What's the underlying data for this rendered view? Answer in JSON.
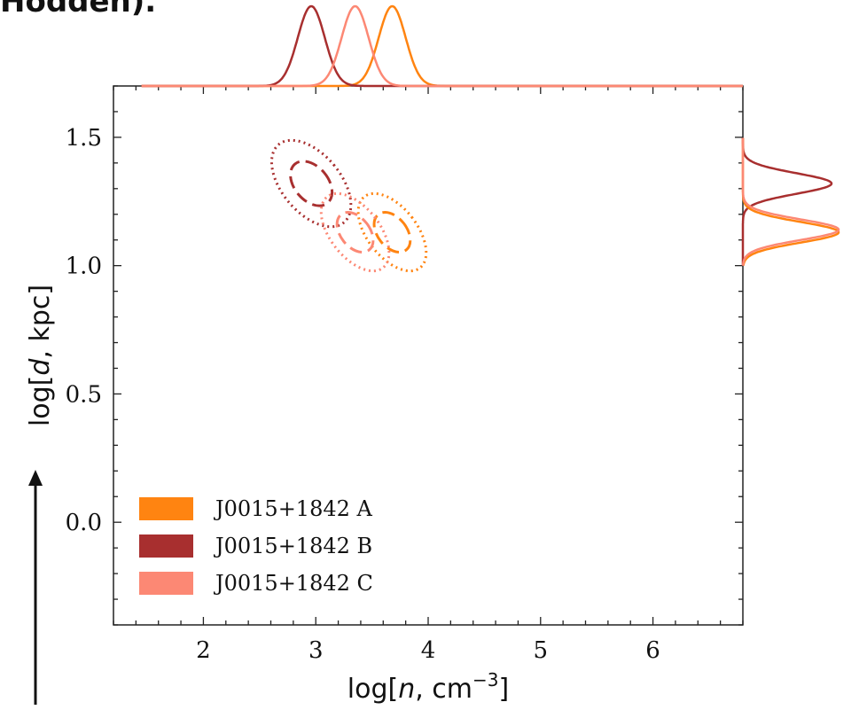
{
  "cutoff_text": "Hodden).",
  "chart_data": {
    "type": "contour",
    "xlabel": "log[n, cm^-3]",
    "ylabel": "log[d, kpc]",
    "xlim": [
      1.2,
      6.8
    ],
    "ylim": [
      -0.4,
      1.7
    ],
    "xticks": [
      "2",
      "3",
      "4",
      "5",
      "6"
    ],
    "yticks": [
      "0.0",
      "0.5",
      "1.0",
      "1.5"
    ],
    "legend_position": "lower-left",
    "series": [
      {
        "name": "J0015+1842 A",
        "color": "#ff8411",
        "logn": 3.68,
        "logd": 1.13,
        "contour_inner": {
          "a": 0.13,
          "b": 0.04,
          "angle_deg": -38
        },
        "contour_outer": {
          "a": 0.22,
          "b": 0.08,
          "angle_deg": -38
        },
        "marginal_logn_peak": 3.68,
        "marginal_logd_peak": 1.13
      },
      {
        "name": "J0015+1842 B",
        "color": "#a82f2f",
        "logn": 2.96,
        "logd": 1.32,
        "contour_inner": {
          "a": 0.15,
          "b": 0.045,
          "angle_deg": -40
        },
        "contour_outer": {
          "a": 0.26,
          "b": 0.09,
          "angle_deg": -40
        },
        "marginal_logn_peak": 2.96,
        "marginal_logd_peak": 1.32
      },
      {
        "name": "J0015+1842 C",
        "color": "#fc8874",
        "logn": 3.35,
        "logd": 1.13,
        "contour_inner": {
          "a": 0.13,
          "b": 0.04,
          "angle_deg": -38
        },
        "contour_outer": {
          "a": 0.22,
          "b": 0.08,
          "angle_deg": -38
        },
        "marginal_logn_peak": 3.35,
        "marginal_logd_peak": 1.14
      }
    ]
  }
}
